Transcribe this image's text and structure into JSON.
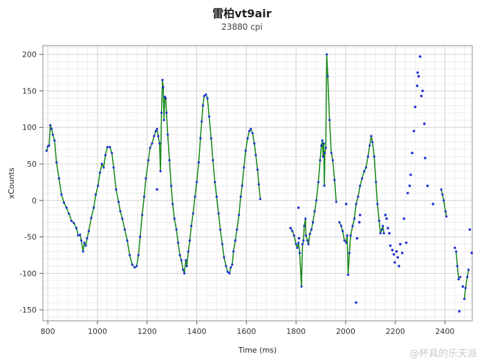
{
  "chart_data": {
    "type": "line",
    "title": "雷柏vt9air",
    "subtitle": "23880 cpi",
    "xlabel": "Time (ms)",
    "ylabel": "xCounts",
    "xlim": [
      780,
      2510
    ],
    "ylim": [
      -165,
      212
    ],
    "xticks": [
      "800",
      "1000",
      "1200",
      "1400",
      "1600",
      "1800",
      "2000",
      "2200",
      "2400"
    ],
    "yticks": [
      "200",
      "150",
      "100",
      "50",
      "0",
      "-50",
      "-100",
      "-150"
    ],
    "grid": true,
    "line_color": "#1a8a1a",
    "point_color": "#1f2fd8",
    "segments": [
      [
        [
          795,
          68
        ],
        [
          800,
          74
        ],
        [
          805,
          75
        ],
        [
          810,
          103
        ],
        [
          815,
          98
        ],
        [
          820,
          90
        ],
        [
          827,
          82
        ],
        [
          835,
          52
        ],
        [
          845,
          30
        ],
        [
          855,
          8
        ],
        [
          865,
          -3
        ],
        [
          875,
          -10
        ],
        [
          885,
          -18
        ],
        [
          895,
          -28
        ],
        [
          905,
          -31
        ],
        [
          915,
          -38
        ],
        [
          922,
          -48
        ],
        [
          930,
          -47
        ],
        [
          935,
          -55
        ],
        [
          942,
          -70
        ],
        [
          947,
          -58
        ],
        [
          953,
          -62
        ],
        [
          958,
          -52
        ],
        [
          965,
          -42
        ],
        [
          975,
          -24
        ],
        [
          985,
          -10
        ],
        [
          993,
          8
        ],
        [
          1002,
          20
        ],
        [
          1010,
          38
        ],
        [
          1018,
          50
        ],
        [
          1025,
          45
        ],
        [
          1032,
          62
        ],
        [
          1040,
          73
        ],
        [
          1050,
          73
        ],
        [
          1058,
          65
        ],
        [
          1065,
          45
        ],
        [
          1075,
          15
        ],
        [
          1085,
          -2
        ],
        [
          1092,
          -15
        ],
        [
          1100,
          -25
        ],
        [
          1110,
          -40
        ],
        [
          1120,
          -55
        ],
        [
          1130,
          -75
        ],
        [
          1140,
          -88
        ],
        [
          1150,
          -92
        ],
        [
          1158,
          -90
        ],
        [
          1165,
          -75
        ],
        [
          1172,
          -50
        ],
        [
          1180,
          -20
        ],
        [
          1188,
          5
        ],
        [
          1195,
          30
        ],
        [
          1205,
          55
        ],
        [
          1212,
          72
        ],
        [
          1220,
          78
        ],
        [
          1228,
          88
        ],
        [
          1235,
          95
        ],
        [
          1240,
          98
        ],
        [
          1245,
          88
        ],
        [
          1250,
          78
        ],
        [
          1254,
          40
        ],
        [
          1258,
          120
        ],
        [
          1262,
          165
        ],
        [
          1265,
          155
        ],
        [
          1268,
          110
        ],
        [
          1271,
          142
        ],
        [
          1275,
          140
        ],
        [
          1278,
          120
        ],
        [
          1283,
          90
        ],
        [
          1290,
          55
        ],
        [
          1297,
          20
        ],
        [
          1303,
          -5
        ],
        [
          1310,
          -25
        ],
        [
          1318,
          -40
        ],
        [
          1325,
          -58
        ],
        [
          1332,
          -75
        ],
        [
          1338,
          -82
        ],
        [
          1345,
          -95
        ],
        [
          1350,
          -100
        ],
        [
          1356,
          -82
        ],
        [
          1360,
          -90
        ],
        [
          1366,
          -70
        ],
        [
          1372,
          -55
        ],
        [
          1378,
          -35
        ],
        [
          1385,
          -18
        ],
        [
          1393,
          5
        ],
        [
          1400,
          25
        ],
        [
          1408,
          52
        ],
        [
          1415,
          85
        ],
        [
          1420,
          108
        ],
        [
          1425,
          130
        ],
        [
          1430,
          143
        ],
        [
          1437,
          145
        ],
        [
          1443,
          140
        ],
        [
          1450,
          115
        ],
        [
          1458,
          85
        ],
        [
          1465,
          55
        ],
        [
          1473,
          25
        ],
        [
          1480,
          5
        ],
        [
          1488,
          -18
        ],
        [
          1495,
          -40
        ],
        [
          1503,
          -60
        ],
        [
          1510,
          -78
        ],
        [
          1518,
          -90
        ],
        [
          1525,
          -98
        ],
        [
          1532,
          -100
        ],
        [
          1537,
          -92
        ],
        [
          1543,
          -88
        ],
        [
          1548,
          -70
        ],
        [
          1555,
          -55
        ],
        [
          1562,
          -40
        ],
        [
          1570,
          -20
        ],
        [
          1577,
          5
        ],
        [
          1583,
          20
        ],
        [
          1590,
          45
        ],
        [
          1597,
          68
        ],
        [
          1605,
          85
        ],
        [
          1612,
          95
        ],
        [
          1618,
          98
        ],
        [
          1625,
          92
        ],
        [
          1632,
          78
        ],
        [
          1638,
          62
        ],
        [
          1645,
          42
        ],
        [
          1650,
          22
        ],
        [
          1656,
          2
        ]
      ],
      [
        [
          1778,
          -38
        ],
        [
          1785,
          -42
        ],
        [
          1792,
          -48
        ],
        [
          1800,
          -60
        ],
        [
          1805,
          -65
        ],
        [
          1810,
          -58
        ],
        [
          1815,
          -72
        ],
        [
          1822,
          -118
        ],
        [
          1826,
          -60
        ],
        [
          1830,
          -55
        ],
        [
          1833,
          -35
        ],
        [
          1838,
          -25
        ],
        [
          1840,
          -48
        ],
        [
          1846,
          -55
        ],
        [
          1850,
          -60
        ],
        [
          1856,
          -46
        ],
        [
          1862,
          -40
        ],
        [
          1868,
          -30
        ],
        [
          1875,
          -15
        ],
        [
          1882,
          0
        ],
        [
          1890,
          25
        ],
        [
          1897,
          55
        ],
        [
          1902,
          75
        ],
        [
          1906,
          82
        ],
        [
          1909,
          60
        ],
        [
          1912,
          78
        ],
        [
          1914,
          20
        ],
        [
          1916,
          65
        ],
        [
          1920,
          72
        ],
        [
          1924,
          200
        ],
        [
          1928,
          170
        ],
        [
          1935,
          110
        ],
        [
          1942,
          65
        ],
        [
          1948,
          55
        ],
        [
          1955,
          28
        ],
        [
          1962,
          -2
        ]
      ],
      [
        [
          1975,
          -30
        ],
        [
          1982,
          -35
        ],
        [
          1988,
          -42
        ],
        [
          1995,
          -55
        ],
        [
          2002,
          -58
        ],
        [
          2006,
          -48
        ],
        [
          2010,
          -102
        ],
        [
          2015,
          -72
        ],
        [
          2020,
          -48
        ],
        [
          2028,
          -35
        ],
        [
          2035,
          -25
        ],
        [
          2042,
          -5
        ],
        [
          2050,
          5
        ],
        [
          2058,
          20
        ],
        [
          2066,
          30
        ],
        [
          2075,
          40
        ],
        [
          2082,
          45
        ],
        [
          2090,
          60
        ],
        [
          2097,
          75
        ],
        [
          2103,
          88
        ],
        [
          2108,
          80
        ],
        [
          2115,
          60
        ],
        [
          2122,
          25
        ],
        [
          2128,
          -5
        ],
        [
          2135,
          -28
        ],
        [
          2140,
          -45
        ],
        [
          2146,
          -40
        ],
        [
          2150,
          -35
        ],
        [
          2154,
          -45
        ]
      ],
      [
        [
          2385,
          15
        ],
        [
          2390,
          8
        ],
        [
          2395,
          0
        ],
        [
          2402,
          -15
        ],
        [
          2406,
          -22
        ]
      ],
      [
        [
          2445,
          -70
        ],
        [
          2450,
          -90
        ],
        [
          2455,
          -108
        ],
        [
          2462,
          -105
        ]
      ],
      [
        [
          2478,
          -135
        ],
        [
          2483,
          -120
        ],
        [
          2490,
          -105
        ],
        [
          2495,
          -95
        ]
      ]
    ],
    "scatter_points": [
      [
        1240,
        15
      ],
      [
        1778,
        -38
      ],
      [
        1810,
        -10
      ],
      [
        1812,
        -52
      ],
      [
        2002,
        -5
      ],
      [
        2042,
        -140
      ],
      [
        2046,
        -52
      ],
      [
        2055,
        -30
      ],
      [
        2058,
        -20
      ],
      [
        2160,
        -20
      ],
      [
        2165,
        -25
      ],
      [
        2170,
        -38
      ],
      [
        2176,
        -45
      ],
      [
        2180,
        -62
      ],
      [
        2188,
        -68
      ],
      [
        2194,
        -74
      ],
      [
        2198,
        -85
      ],
      [
        2205,
        -70
      ],
      [
        2210,
        -78
      ],
      [
        2215,
        -90
      ],
      [
        2220,
        -60
      ],
      [
        2228,
        -72
      ],
      [
        2235,
        -25
      ],
      [
        2244,
        -58
      ],
      [
        2250,
        10
      ],
      [
        2258,
        20
      ],
      [
        2262,
        35
      ],
      [
        2268,
        65
      ],
      [
        2275,
        95
      ],
      [
        2280,
        128
      ],
      [
        2288,
        157
      ],
      [
        2294,
        170
      ],
      [
        2300,
        197
      ],
      [
        2305,
        143
      ],
      [
        2310,
        150
      ],
      [
        2317,
        105
      ],
      [
        2320,
        58
      ],
      [
        2330,
        20
      ],
      [
        2352,
        -5
      ],
      [
        2440,
        -65
      ],
      [
        2458,
        -152
      ],
      [
        2472,
        -118
      ],
      [
        2500,
        -40
      ],
      [
        2508,
        -72
      ],
      [
        2290,
        175
      ]
    ]
  },
  "watermark": "@杯具的乐天派"
}
